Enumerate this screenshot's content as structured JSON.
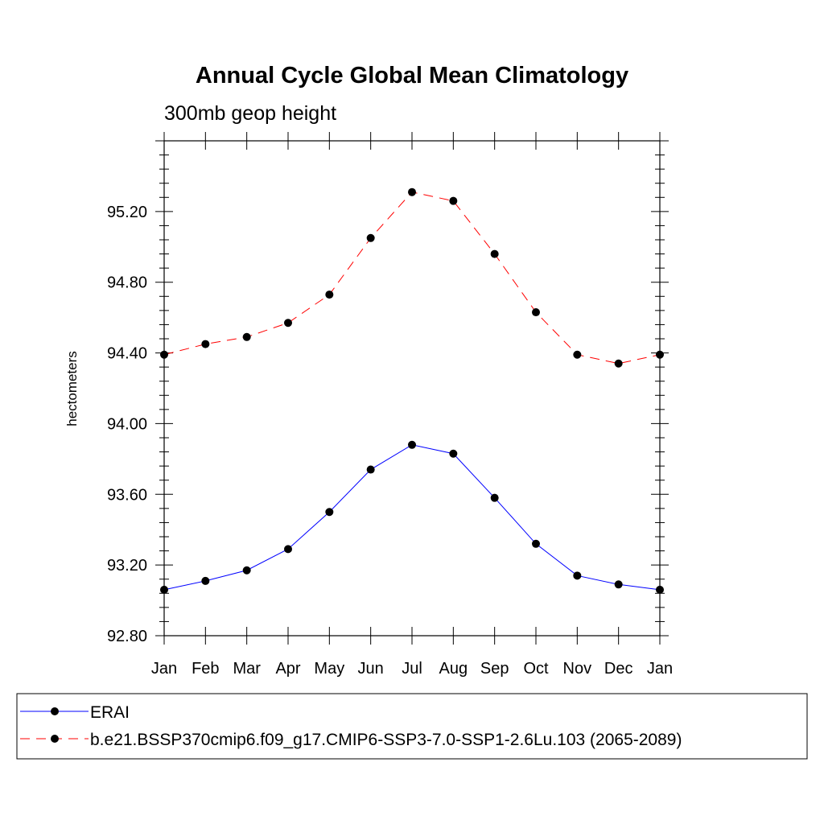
{
  "chart_data": {
    "type": "line",
    "title": "Annual Cycle Global Mean Climatology",
    "subtitle": "300mb geop height",
    "xlabel": "",
    "ylabel": "hectometers",
    "categories": [
      "Jan",
      "Feb",
      "Mar",
      "Apr",
      "May",
      "Jun",
      "Jul",
      "Aug",
      "Sep",
      "Oct",
      "Nov",
      "Dec",
      "Jan"
    ],
    "ylim": [
      92.8,
      95.6
    ],
    "yticks": [
      "92.80",
      "93.20",
      "93.60",
      "94.00",
      "94.40",
      "94.80",
      "95.20"
    ],
    "grid": false,
    "legend_position": "bottom",
    "series": [
      {
        "name": "ERAI",
        "color": "#0000ff",
        "dash": "solid",
        "marker": "filled-circle",
        "values": [
          93.06,
          93.11,
          93.17,
          93.29,
          93.5,
          93.74,
          93.88,
          93.83,
          93.58,
          93.32,
          93.14,
          93.09,
          93.06
        ]
      },
      {
        "name": "b.e21.BSSP370cmip6.f09_g17.CMIP6-SSP3-7.0-SSP1-2.6Lu.103 (2065-2089)",
        "color": "#ff0000",
        "dash": "dashed",
        "marker": "filled-circle",
        "values": [
          94.39,
          94.45,
          94.49,
          94.57,
          94.73,
          95.05,
          95.31,
          95.26,
          94.96,
          94.63,
          94.39,
          94.34,
          94.39
        ]
      }
    ]
  }
}
